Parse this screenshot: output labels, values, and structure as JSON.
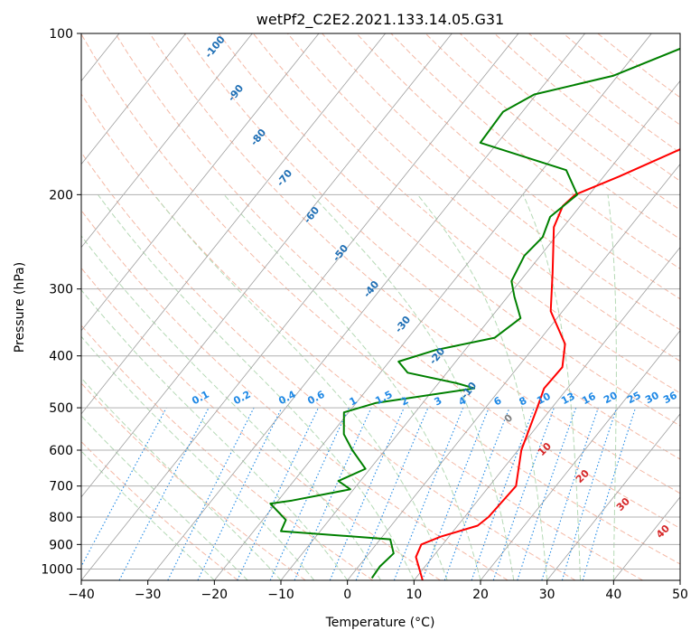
{
  "chart_data": {
    "type": "line",
    "subtype": "skew-t log-p",
    "title": "wetPf2_C2E2.2021.133.14.05.G31",
    "xlabel": "Temperature (°C)",
    "ylabel": "Pressure (hPa)",
    "xlim": [
      -40,
      50
    ],
    "ylim": [
      1050,
      100
    ],
    "y_scale": "log",
    "grid": true,
    "x_ticks": [
      -40,
      -30,
      -20,
      -10,
      0,
      10,
      20,
      30,
      40,
      50
    ],
    "y_ticks": [
      100,
      200,
      300,
      400,
      500,
      600,
      700,
      800,
      900,
      1000
    ],
    "series": [
      {
        "name": "",
        "role": "temperature",
        "color": "#ff0000",
        "points": [
          [
            11.3,
            1050
          ],
          [
            7.5,
            950
          ],
          [
            6.8,
            900
          ],
          [
            8.8,
            870
          ],
          [
            13.0,
            830
          ],
          [
            13.6,
            800
          ],
          [
            14.0,
            700
          ],
          [
            10.5,
            600
          ],
          [
            7.8,
            500
          ],
          [
            6.5,
            460
          ],
          [
            6.7,
            420
          ],
          [
            4.3,
            380
          ],
          [
            -1.8,
            330
          ],
          [
            -6.1,
            280
          ],
          [
            -11.4,
            230
          ],
          [
            -12.6,
            210
          ],
          [
            -12.1,
            200
          ],
          [
            -7.7,
            185
          ],
          [
            -1.9,
            165
          ],
          [
            1.8,
            150
          ],
          [
            4.6,
            140
          ],
          [
            7.3,
            130
          ],
          [
            11.3,
            118
          ],
          [
            18.9,
            100
          ]
        ]
      },
      {
        "name": "",
        "role": "dewpoint",
        "color": "#008000",
        "points": [
          [
            3.4,
            1040
          ],
          [
            3.2,
            990
          ],
          [
            3.7,
            935
          ],
          [
            1.5,
            880
          ],
          [
            -15.9,
            850
          ],
          [
            -16.5,
            810
          ],
          [
            -20.8,
            755
          ],
          [
            -17.9,
            745
          ],
          [
            -10.5,
            710
          ],
          [
            -13.3,
            685
          ],
          [
            -10.7,
            650
          ],
          [
            -14.9,
            600
          ],
          [
            -18.1,
            560
          ],
          [
            -20.7,
            510
          ],
          [
            -17.1,
            490
          ],
          [
            -4.0,
            460
          ],
          [
            -7.2,
            450
          ],
          [
            -15.9,
            430
          ],
          [
            -18.6,
            410
          ],
          [
            -14.4,
            390
          ],
          [
            -7.0,
            370
          ],
          [
            -5.5,
            340
          ],
          [
            -9.0,
            310
          ],
          [
            -11.3,
            290
          ],
          [
            -12.4,
            260
          ],
          [
            -11.9,
            240
          ],
          [
            -13.2,
            220
          ],
          [
            -11.8,
            200
          ],
          [
            -16.4,
            180
          ],
          [
            -32.6,
            160
          ],
          [
            -32.9,
            140
          ],
          [
            -30.3,
            130
          ],
          [
            -20.7,
            120
          ],
          [
            -12.9,
            105
          ],
          [
            -12.9,
            100
          ]
        ]
      }
    ],
    "isotherm_labels": [
      "-100",
      "-90",
      "-80",
      "-70",
      "-60",
      "-50",
      "-40",
      "-30",
      "-20",
      "-10"
    ],
    "mixing_ratio_labels": [
      "0.1",
      "0.2",
      "0.4",
      "0.6",
      "1",
      "1.5",
      "2",
      "3",
      "4",
      "6",
      "8",
      "10",
      "13",
      "16",
      "20",
      "25",
      "30",
      "36"
    ],
    "isotherm_label_lower": [
      "0",
      "10",
      "20",
      "30",
      "40"
    ],
    "colors": {
      "temperature": "#ff0000",
      "dewpoint": "#008000",
      "isotherm": "#9e9e9e",
      "dry_adiabat": "#f4b9a6",
      "moist_adiabat": "#b5d9b5",
      "mixing_ratio": "#1e88e5",
      "label_blue": "#1f6fb5",
      "label_red": "#d62728",
      "label_gray": "#7f7f7f"
    }
  }
}
